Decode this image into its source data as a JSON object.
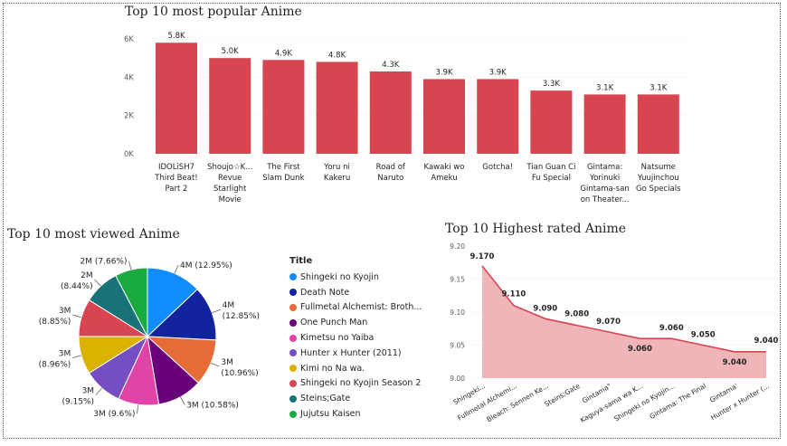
{
  "colors": {
    "bar": "#d64550",
    "area_fill": "#efb5b9",
    "area_line": "#d64550"
  },
  "titles": {
    "popular": "Top 10 most popular Anime",
    "viewed": "Top 10 most viewed Anime",
    "rated": "Top 10 Highest rated Anime"
  },
  "legend": {
    "title": "Title"
  },
  "chart_data": [
    {
      "type": "bar",
      "title": "Top 10 most popular Anime",
      "categories": [
        [
          "IDOLiSH7",
          "Third Beat!",
          "Part 2"
        ],
        [
          "Shoujo☆K...",
          "Revue",
          "Starlight",
          "Movie"
        ],
        [
          "The First",
          "Slam Dunk"
        ],
        [
          "Yoru ni",
          "Kakeru"
        ],
        [
          "Road of",
          "Naruto"
        ],
        [
          "Kawaki wo",
          "Ameku"
        ],
        [
          "Gotcha!"
        ],
        [
          "Tian Guan Ci",
          "Fu Special"
        ],
        [
          "Gintama:",
          "Yorinuki",
          "Gintama-san",
          "on Theater..."
        ],
        [
          "Natsume",
          "Yuujinchou",
          "Go Specials"
        ]
      ],
      "values": [
        5800,
        5000,
        4900,
        4800,
        4300,
        3900,
        3900,
        3300,
        3100,
        3100
      ],
      "data_labels": [
        "5.8K",
        "5.0K",
        "4.9K",
        "4.8K",
        "4.3K",
        "3.9K",
        "3.9K",
        "3.3K",
        "3.1K",
        "3.1K"
      ],
      "yticks": [
        0,
        2000,
        4000,
        6000
      ],
      "ytick_labels": [
        "0K",
        "2K",
        "4K",
        "6K"
      ],
      "ylim": [
        0,
        6000
      ]
    },
    {
      "type": "pie",
      "title": "Top 10 most viewed Anime",
      "slices": [
        {
          "name": "Shingeki no Kyojin",
          "label": "4M (12.95%)",
          "percent": 12.95,
          "color": "#118dff"
        },
        {
          "name": "Death Note",
          "label": "4M (12.85%)",
          "percent": 12.85,
          "color": "#12239e"
        },
        {
          "name": "Fullmetal Alchemist: Broth...",
          "label": "3M (10.96%)",
          "percent": 10.96,
          "color": "#e66c37"
        },
        {
          "name": "One Punch Man",
          "label": "3M (10.58%)",
          "percent": 10.58,
          "color": "#6b007b"
        },
        {
          "name": "Kimetsu no Yaiba",
          "label": "3M (9.6%)",
          "percent": 9.6,
          "color": "#e044a7"
        },
        {
          "name": "Hunter x Hunter (2011)",
          "label": "3M (9.15%)",
          "percent": 9.15,
          "color": "#744ec2"
        },
        {
          "name": "Kimi no Na wa.",
          "label": "3M (8.96%)",
          "percent": 8.96,
          "color": "#d9b300"
        },
        {
          "name": "Shingeki no Kyojin Season 2",
          "label": "3M (8.85%)",
          "percent": 8.85,
          "color": "#d64550"
        },
        {
          "name": "Steins;Gate",
          "label": "2M (8.44%)",
          "percent": 8.44,
          "color": "#197278"
        },
        {
          "name": "Jujutsu Kaisen",
          "label": "2M (7.66%)",
          "percent": 7.66,
          "color": "#1aab40"
        }
      ]
    },
    {
      "type": "area",
      "title": "Top 10 Highest rated Anime",
      "categories": [
        "Shingeki...",
        "Fullmetal Alchemi...",
        "Bleach: Sennen Ke...",
        "Steins;Gate",
        "Gintama°",
        "Kaguya-sama wa K...",
        "Shingeki no Kyojin...",
        "Gintama: The Final",
        "Gintama'",
        "Hunter x Hunter (..."
      ],
      "values": [
        9.17,
        9.11,
        9.09,
        9.08,
        9.07,
        9.06,
        9.06,
        9.05,
        9.04,
        9.04
      ],
      "data_labels": [
        "9.170",
        "9.110",
        "9.090",
        "9.080",
        "9.070",
        "9.060",
        "9.060",
        "9.050",
        "9.040",
        "9.040"
      ],
      "yticks": [
        9.0,
        9.05,
        9.1,
        9.15,
        9.2
      ],
      "ytick_labels": [
        "9.00",
        "9.05",
        "9.10",
        "9.15",
        "9.20"
      ],
      "ylim": [
        9.0,
        9.2
      ]
    }
  ]
}
